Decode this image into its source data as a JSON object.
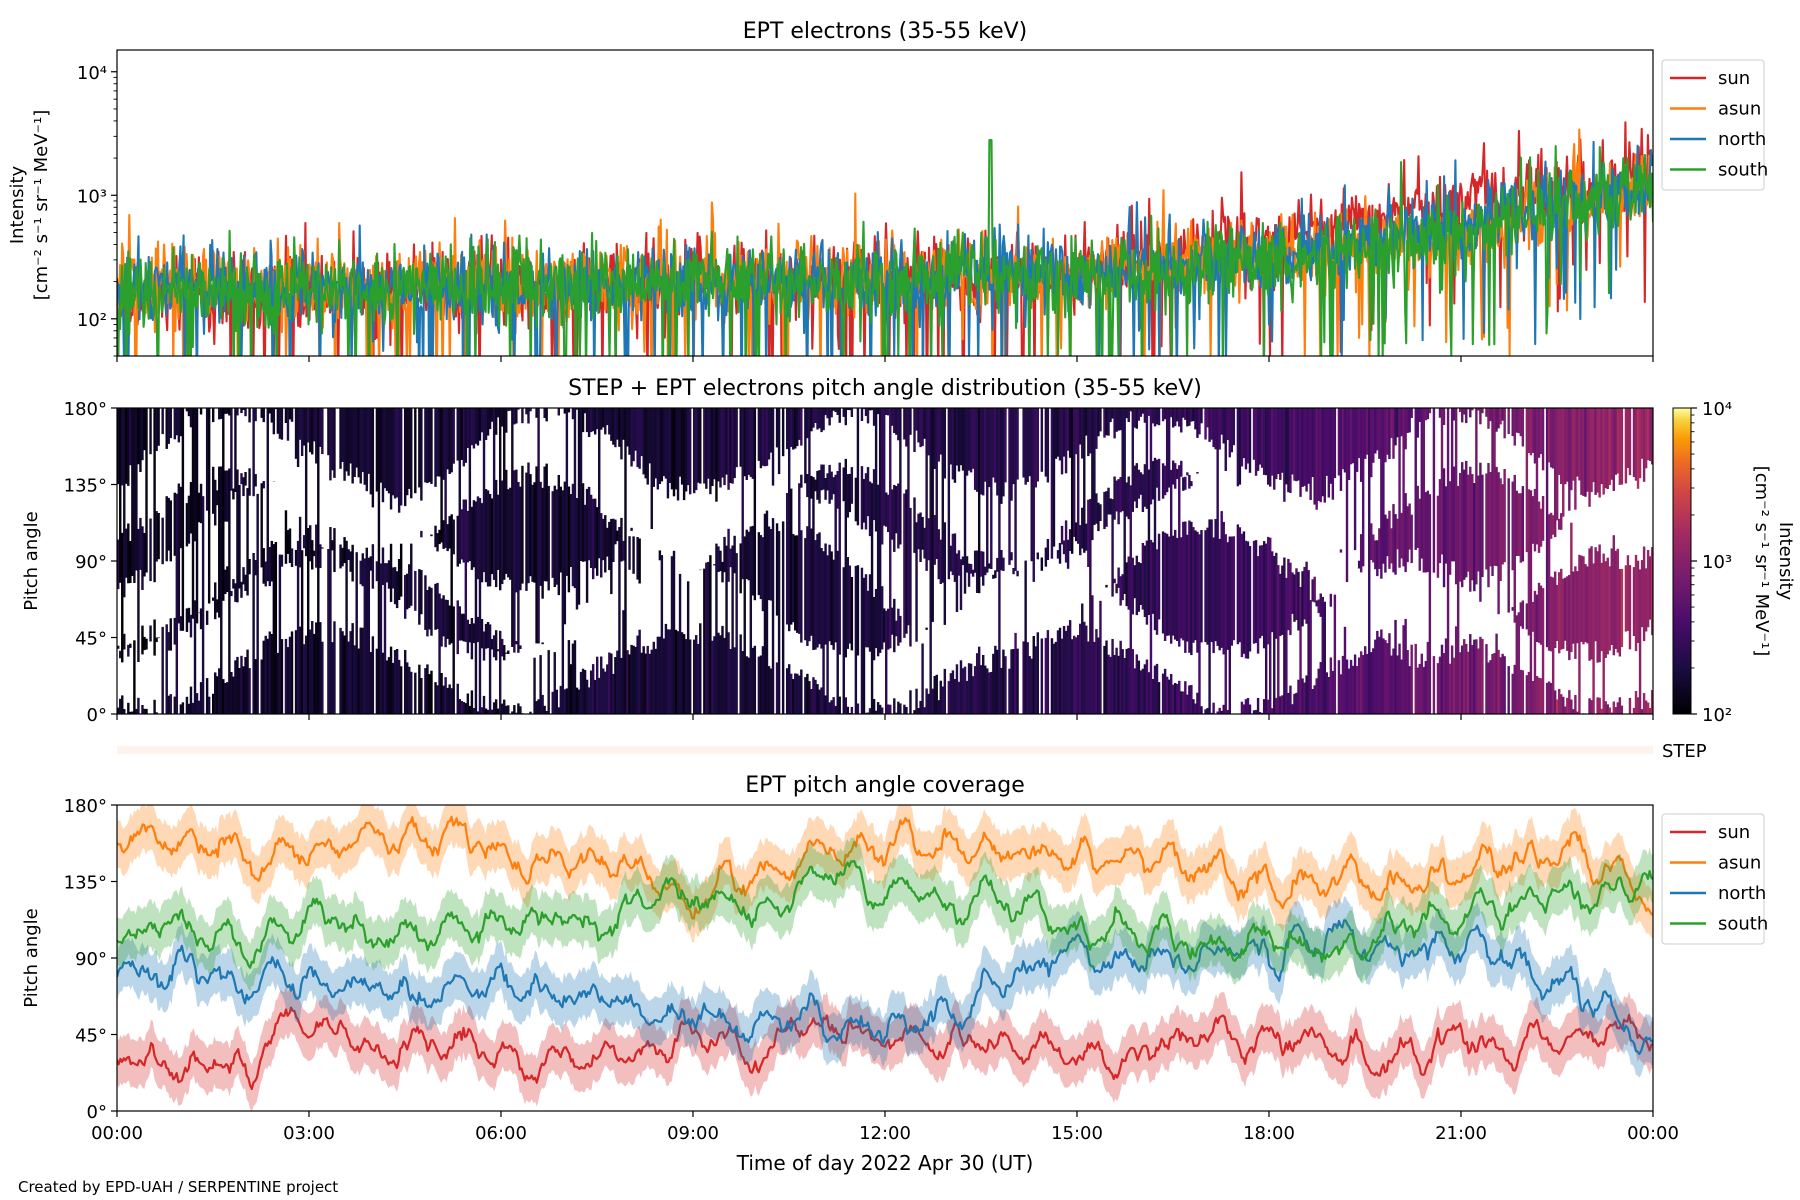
{
  "footer": "Created by EPD-UAH / SERPENTINE project",
  "x_axis": {
    "label": "Time of day 2022 Apr 30 (UT)",
    "tick_labels": [
      "00:00",
      "03:00",
      "06:00",
      "09:00",
      "12:00",
      "15:00",
      "18:00",
      "21:00",
      "00:00"
    ],
    "range_hours": [
      0,
      24
    ]
  },
  "colors": {
    "sun": "#d62728",
    "asun": "#ff7f0e",
    "north": "#1f77b4",
    "south": "#2ca02c"
  },
  "chart_data": [
    {
      "id": "intensity",
      "type": "line",
      "title": "EPT electrons (35-55 keV)",
      "ylabel_line1": "Intensity",
      "ylabel_line2": "[cm⁻² s⁻¹ sr⁻¹ MeV⁻¹]",
      "yscale": "log",
      "ylim": [
        50,
        15000
      ],
      "y_tick_labels": [
        {
          "value": 100,
          "label": "10²"
        },
        {
          "value": 1000,
          "label": "10³"
        },
        {
          "value": 10000,
          "label": "10⁴"
        }
      ],
      "legend_position": "outside-right",
      "series": [
        {
          "name": "sun",
          "color": "#d62728",
          "x": [
            0,
            3,
            6,
            9,
            12,
            13.5,
            15,
            16.5,
            18,
            19,
            20,
            21,
            22,
            23,
            24
          ],
          "y": [
            150,
            160,
            170,
            190,
            210,
            220,
            240,
            320,
            420,
            620,
            780,
            900,
            1000,
            1200,
            1500
          ]
        },
        {
          "name": "asun",
          "color": "#ff7f0e",
          "x": [
            0,
            3,
            6,
            9,
            12,
            13.5,
            15,
            16.5,
            18,
            19,
            20,
            21,
            22,
            23,
            24
          ],
          "y": [
            200,
            190,
            200,
            200,
            210,
            220,
            230,
            280,
            330,
            380,
            430,
            500,
            650,
            950,
            1300
          ]
        },
        {
          "name": "north",
          "color": "#1f77b4",
          "x": [
            0,
            3,
            6,
            9,
            12,
            13.5,
            15,
            16.5,
            18,
            19,
            20,
            21,
            22,
            23,
            24
          ],
          "y": [
            180,
            170,
            180,
            190,
            200,
            260,
            220,
            270,
            330,
            380,
            470,
            580,
            800,
            1000,
            1350
          ]
        },
        {
          "name": "south",
          "color": "#2ca02c",
          "x": [
            0,
            3,
            6,
            9,
            12,
            13.5,
            15,
            16.5,
            18,
            19,
            20,
            21,
            22,
            23,
            24
          ],
          "y": [
            170,
            170,
            190,
            200,
            200,
            280,
            220,
            250,
            300,
            340,
            400,
            500,
            700,
            900,
            1300
          ]
        }
      ],
      "annotations": [
        {
          "series": "south",
          "x": 13.65,
          "y": 2800
        }
      ]
    },
    {
      "id": "pad",
      "type": "heatmap",
      "title": "STEP + EPT electrons pitch angle distribution (35-55 keV)",
      "ylabel": "Pitch angle",
      "ylim": [
        0,
        180
      ],
      "y_tick_labels": [
        "0°",
        "45°",
        "90°",
        "135°",
        "180°"
      ],
      "colorbar": {
        "label_line1": "Intensity",
        "label_line2": "[cm⁻² s⁻¹ sr⁻¹ MeV⁻¹]",
        "scale": "log",
        "range": [
          100,
          10000
        ],
        "tick_labels": [
          {
            "value": 100,
            "label": "10²"
          },
          {
            "value": 1000,
            "label": "10³"
          },
          {
            "value": 10000,
            "label": "10⁴"
          }
        ],
        "colormap": "inferno"
      },
      "intensity_trend": {
        "x": [
          0,
          9,
          15,
          18,
          20,
          22,
          24
        ],
        "y": [
          150,
          180,
          230,
          330,
          520,
          800,
          1300
        ]
      }
    },
    {
      "id": "step",
      "type": "heatmap",
      "label": "STEP"
    },
    {
      "id": "coverage",
      "type": "line",
      "title": "EPT pitch angle coverage",
      "ylabel": "Pitch angle",
      "ylim": [
        0,
        180
      ],
      "y_tick_labels": [
        "0°",
        "45°",
        "90°",
        "135°",
        "180°"
      ],
      "legend_position": "outside-right",
      "series": [
        {
          "name": "sun",
          "color": "#d62728",
          "x": [
            0,
            1,
            2,
            3,
            4,
            5,
            6,
            7,
            8,
            9,
            10,
            11,
            12,
            13,
            14,
            15,
            16,
            17,
            18,
            19,
            20,
            21,
            22,
            23,
            24
          ],
          "y": [
            28,
            32,
            30,
            55,
            35,
            40,
            28,
            30,
            32,
            45,
            38,
            55,
            40,
            35,
            45,
            35,
            30,
            45,
            40,
            35,
            30,
            40,
            35,
            45,
            50
          ]
        },
        {
          "name": "asun",
          "color": "#ff7f0e",
          "x": [
            0,
            1,
            2,
            3,
            4,
            5,
            6,
            7,
            8,
            9,
            10,
            11,
            12,
            13,
            14,
            15,
            16,
            17,
            18,
            19,
            20,
            21,
            22,
            23,
            24
          ],
          "y": [
            160,
            158,
            155,
            155,
            162,
            160,
            150,
            148,
            145,
            125,
            140,
            150,
            160,
            155,
            150,
            145,
            150,
            140,
            130,
            140,
            135,
            140,
            145,
            150,
            120
          ]
        },
        {
          "name": "north",
          "color": "#1f77b4",
          "x": [
            0,
            1,
            2,
            3,
            4,
            5,
            6,
            7,
            8,
            9,
            10,
            11,
            12,
            13,
            14,
            15,
            16,
            17,
            18,
            19,
            20,
            21,
            22,
            23,
            24
          ],
          "y": [
            80,
            85,
            75,
            80,
            75,
            65,
            72,
            70,
            60,
            55,
            50,
            55,
            45,
            60,
            80,
            95,
            90,
            90,
            95,
            100,
            95,
            100,
            90,
            70,
            35
          ]
        },
        {
          "name": "south",
          "color": "#2ca02c",
          "x": [
            0,
            1,
            2,
            3,
            4,
            5,
            6,
            7,
            8,
            9,
            10,
            11,
            12,
            13,
            14,
            15,
            16,
            17,
            18,
            19,
            20,
            21,
            22,
            23,
            24
          ],
          "y": [
            105,
            108,
            100,
            115,
            100,
            105,
            110,
            112,
            115,
            130,
            120,
            140,
            130,
            120,
            115,
            110,
            100,
            100,
            105,
            95,
            110,
            115,
            125,
            130,
            140
          ]
        }
      ]
    }
  ]
}
